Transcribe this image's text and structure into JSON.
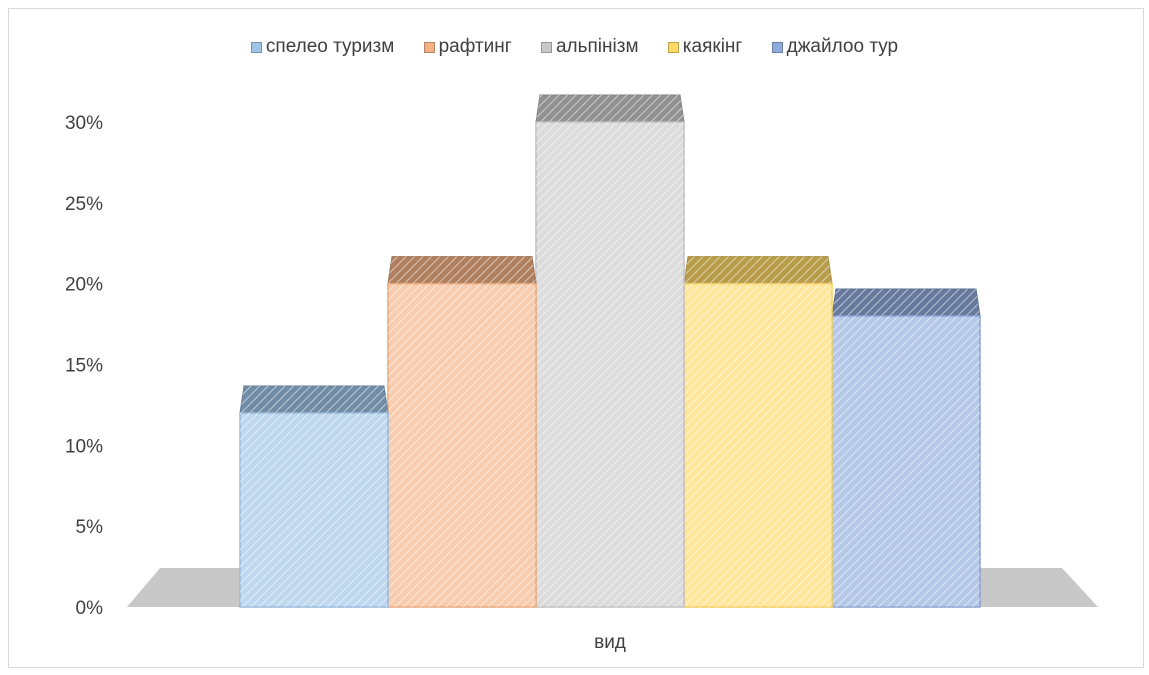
{
  "chart_data": {
    "type": "bar",
    "title": "",
    "xlabel": "",
    "ylabel": "",
    "categories": [
      "вид"
    ],
    "series": [
      {
        "name": "спелео туризм",
        "values": [
          0.12
        ],
        "color": "#9dc3e6"
      },
      {
        "name": "рафтинг",
        "values": [
          0.2
        ],
        "color": "#f4b183"
      },
      {
        "name": "альпінізм",
        "values": [
          0.3
        ],
        "color": "#c9c9c9"
      },
      {
        "name": "каякінг",
        "values": [
          0.2
        ],
        "color": "#ffd966"
      },
      {
        "name": "джайлоо тур",
        "values": [
          0.18
        ],
        "color": "#8faadc"
      }
    ],
    "ylim": [
      0,
      0.3
    ],
    "yticks": [
      "0%",
      "5%",
      "10%",
      "15%",
      "20%",
      "25%",
      "30%"
    ],
    "legend_position": "top",
    "style": "3d-column",
    "gridlines": false
  }
}
